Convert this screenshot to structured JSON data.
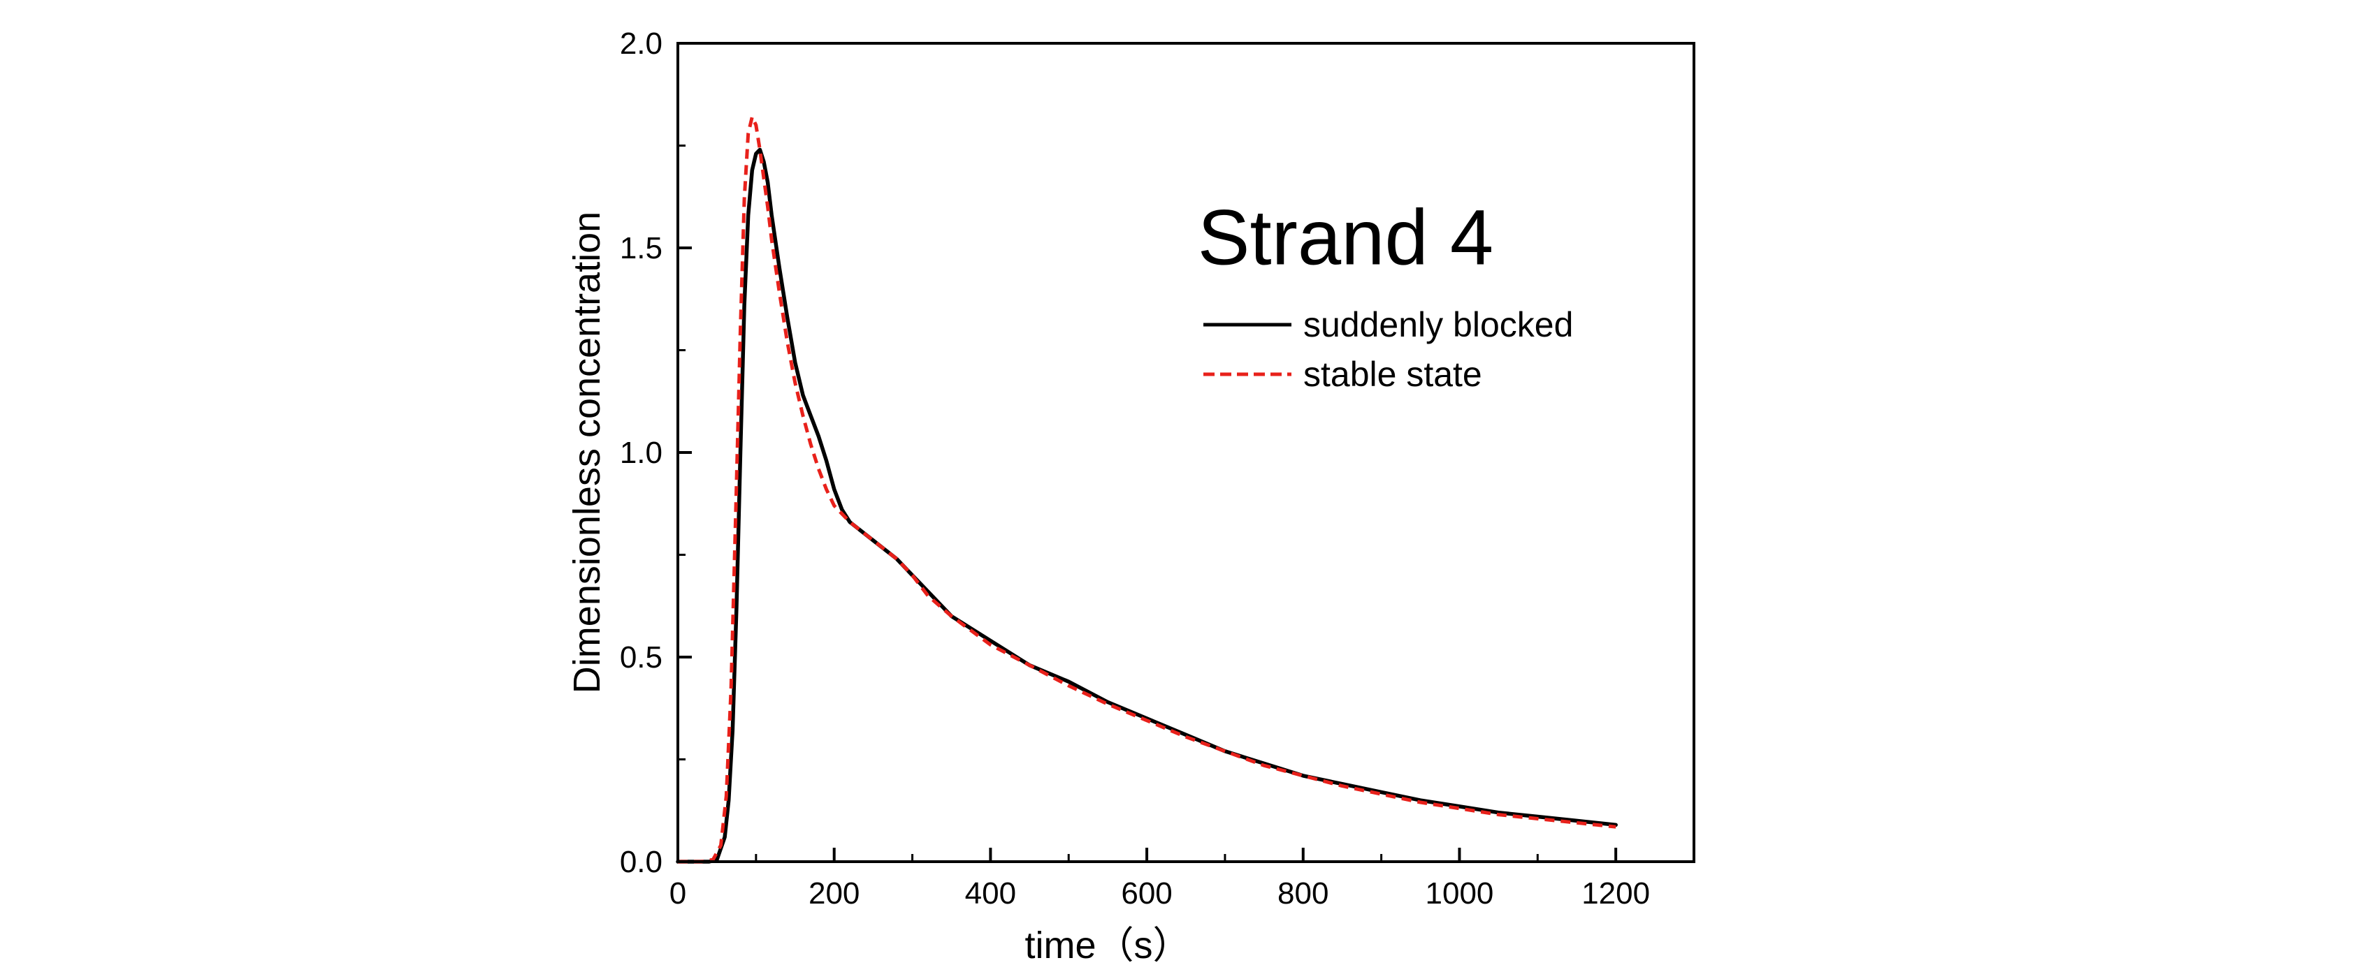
{
  "chart_data": {
    "type": "line",
    "xlabel": "time（s）",
    "ylabel": "Dimensionless concentration",
    "xlim": [
      0,
      1300
    ],
    "ylim": [
      0,
      2.0
    ],
    "x_ticks": [
      0,
      200,
      400,
      600,
      800,
      1000,
      1200
    ],
    "y_ticks": [
      0.0,
      0.5,
      1.0,
      1.5,
      2.0
    ],
    "x_tick_labels": [
      "0",
      "200",
      "400",
      "600",
      "800",
      "1000",
      "1200"
    ],
    "y_tick_labels": [
      "0.0",
      "0.5",
      "1.0",
      "1.5",
      "2.0"
    ],
    "grid": false,
    "legend_position": "top-right",
    "annotations": [
      {
        "text": "Strand 4",
        "x": 665,
        "y": 1.46
      }
    ],
    "series": [
      {
        "name": "suddenly blocked",
        "color": "#000000",
        "style": "solid",
        "points": [
          [
            0,
            0.0
          ],
          [
            40,
            0.0
          ],
          [
            50,
            0.005
          ],
          [
            60,
            0.06
          ],
          [
            65,
            0.15
          ],
          [
            70,
            0.32
          ],
          [
            75,
            0.62
          ],
          [
            80,
            1.0
          ],
          [
            85,
            1.36
          ],
          [
            90,
            1.58
          ],
          [
            95,
            1.69
          ],
          [
            100,
            1.73
          ],
          [
            105,
            1.74
          ],
          [
            110,
            1.71
          ],
          [
            115,
            1.66
          ],
          [
            120,
            1.58
          ],
          [
            130,
            1.45
          ],
          [
            140,
            1.33
          ],
          [
            150,
            1.22
          ],
          [
            160,
            1.14
          ],
          [
            170,
            1.09
          ],
          [
            180,
            1.04
          ],
          [
            190,
            0.98
          ],
          [
            200,
            0.91
          ],
          [
            210,
            0.86
          ],
          [
            220,
            0.83
          ],
          [
            240,
            0.8
          ],
          [
            260,
            0.77
          ],
          [
            280,
            0.74
          ],
          [
            300,
            0.7
          ],
          [
            320,
            0.66
          ],
          [
            350,
            0.6
          ],
          [
            400,
            0.54
          ],
          [
            450,
            0.48
          ],
          [
            500,
            0.44
          ],
          [
            550,
            0.39
          ],
          [
            600,
            0.35
          ],
          [
            650,
            0.31
          ],
          [
            700,
            0.27
          ],
          [
            750,
            0.24
          ],
          [
            800,
            0.21
          ],
          [
            850,
            0.19
          ],
          [
            900,
            0.17
          ],
          [
            950,
            0.15
          ],
          [
            1000,
            0.135
          ],
          [
            1050,
            0.12
          ],
          [
            1100,
            0.11
          ],
          [
            1150,
            0.1
          ],
          [
            1200,
            0.09
          ]
        ]
      },
      {
        "name": "stable state",
        "color": "#e8211b",
        "style": "dashed",
        "points": [
          [
            0,
            0.0
          ],
          [
            30,
            0.0
          ],
          [
            45,
            0.005
          ],
          [
            55,
            0.04
          ],
          [
            62,
            0.16
          ],
          [
            68,
            0.42
          ],
          [
            74,
            0.85
          ],
          [
            80,
            1.3
          ],
          [
            85,
            1.62
          ],
          [
            90,
            1.78
          ],
          [
            95,
            1.82
          ],
          [
            100,
            1.8
          ],
          [
            105,
            1.74
          ],
          [
            110,
            1.67
          ],
          [
            115,
            1.6
          ],
          [
            120,
            1.52
          ],
          [
            130,
            1.39
          ],
          [
            140,
            1.27
          ],
          [
            150,
            1.17
          ],
          [
            160,
            1.09
          ],
          [
            170,
            1.02
          ],
          [
            180,
            0.96
          ],
          [
            190,
            0.91
          ],
          [
            200,
            0.87
          ],
          [
            210,
            0.85
          ],
          [
            220,
            0.83
          ],
          [
            240,
            0.8
          ],
          [
            260,
            0.77
          ],
          [
            280,
            0.74
          ],
          [
            300,
            0.7
          ],
          [
            320,
            0.65
          ],
          [
            350,
            0.6
          ],
          [
            400,
            0.53
          ],
          [
            450,
            0.48
          ],
          [
            500,
            0.43
          ],
          [
            550,
            0.385
          ],
          [
            600,
            0.345
          ],
          [
            650,
            0.305
          ],
          [
            700,
            0.27
          ],
          [
            750,
            0.235
          ],
          [
            800,
            0.21
          ],
          [
            850,
            0.185
          ],
          [
            900,
            0.165
          ],
          [
            950,
            0.145
          ],
          [
            1000,
            0.13
          ],
          [
            1050,
            0.115
          ],
          [
            1100,
            0.105
          ],
          [
            1150,
            0.095
          ],
          [
            1200,
            0.085
          ]
        ]
      }
    ]
  }
}
